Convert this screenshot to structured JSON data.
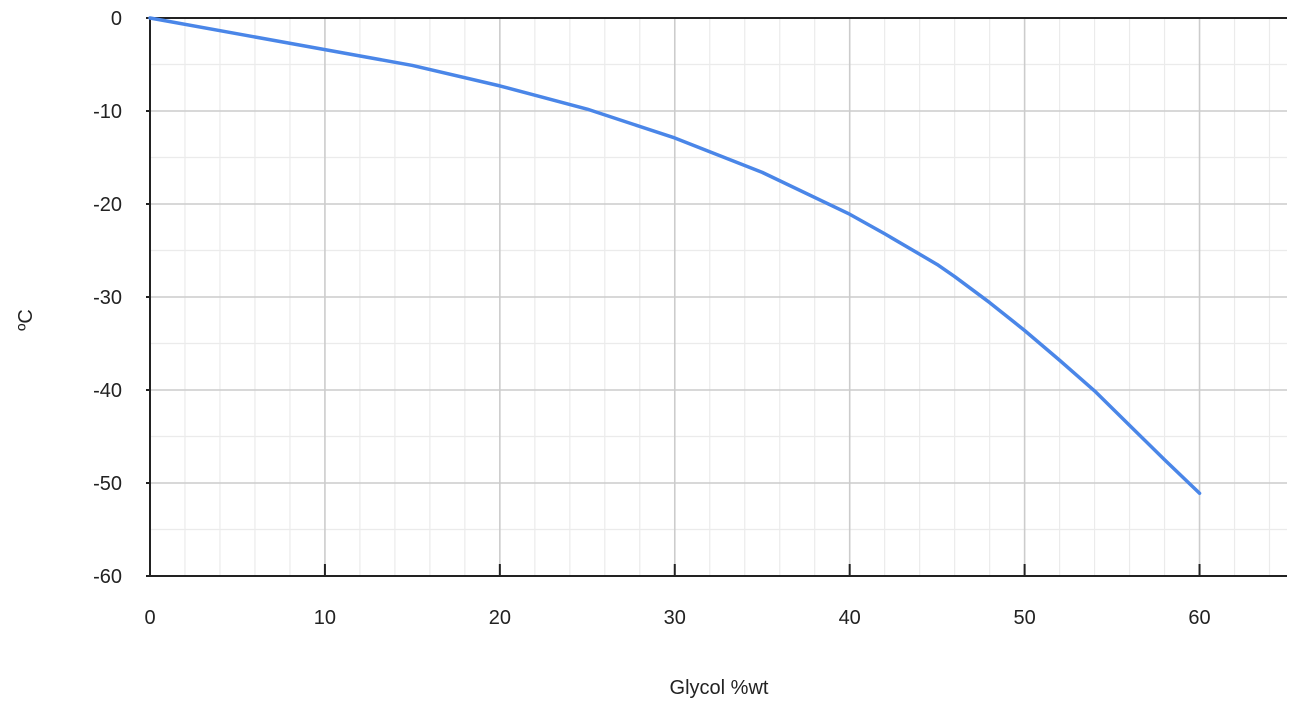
{
  "chart_data": {
    "type": "line",
    "title": "",
    "xlabel": "Glycol %wt",
    "ylabel": "ºC",
    "xlim": [
      0,
      65
    ],
    "ylim": [
      -60,
      0
    ],
    "x_ticks": [
      0,
      10,
      20,
      30,
      40,
      50,
      60
    ],
    "y_ticks": [
      0,
      -10,
      -20,
      -30,
      -40,
      -50,
      -60
    ],
    "x_tick_labels": [
      "0",
      "10",
      "20",
      "30",
      "40",
      "50",
      "60"
    ],
    "y_tick_labels": [
      "0",
      "-10",
      "-20",
      "-30",
      "-40",
      "-50",
      "-60"
    ],
    "x_minor_step": 2,
    "y_minor_step": 5,
    "grid": true,
    "legend": "none",
    "series": [
      {
        "color": "#4a86e8",
        "x": [
          0,
          5,
          10,
          15,
          20,
          22,
          25,
          30,
          35,
          40,
          42,
          45,
          46,
          48,
          50,
          52,
          54,
          56,
          58,
          60
        ],
        "y": [
          0,
          -1.7,
          -3.4,
          -5.1,
          -7.3,
          -8.3,
          -9.8,
          -12.9,
          -16.6,
          -21.1,
          -23.2,
          -26.5,
          -27.8,
          -30.6,
          -33.6,
          -36.8,
          -40.1,
          -43.8,
          -47.5,
          -51.1
        ]
      }
    ]
  },
  "colors": {
    "line": "#4a86e8",
    "major_grid": "#cccccc",
    "minor_grid": "#ebebeb",
    "axis": "#222222"
  }
}
